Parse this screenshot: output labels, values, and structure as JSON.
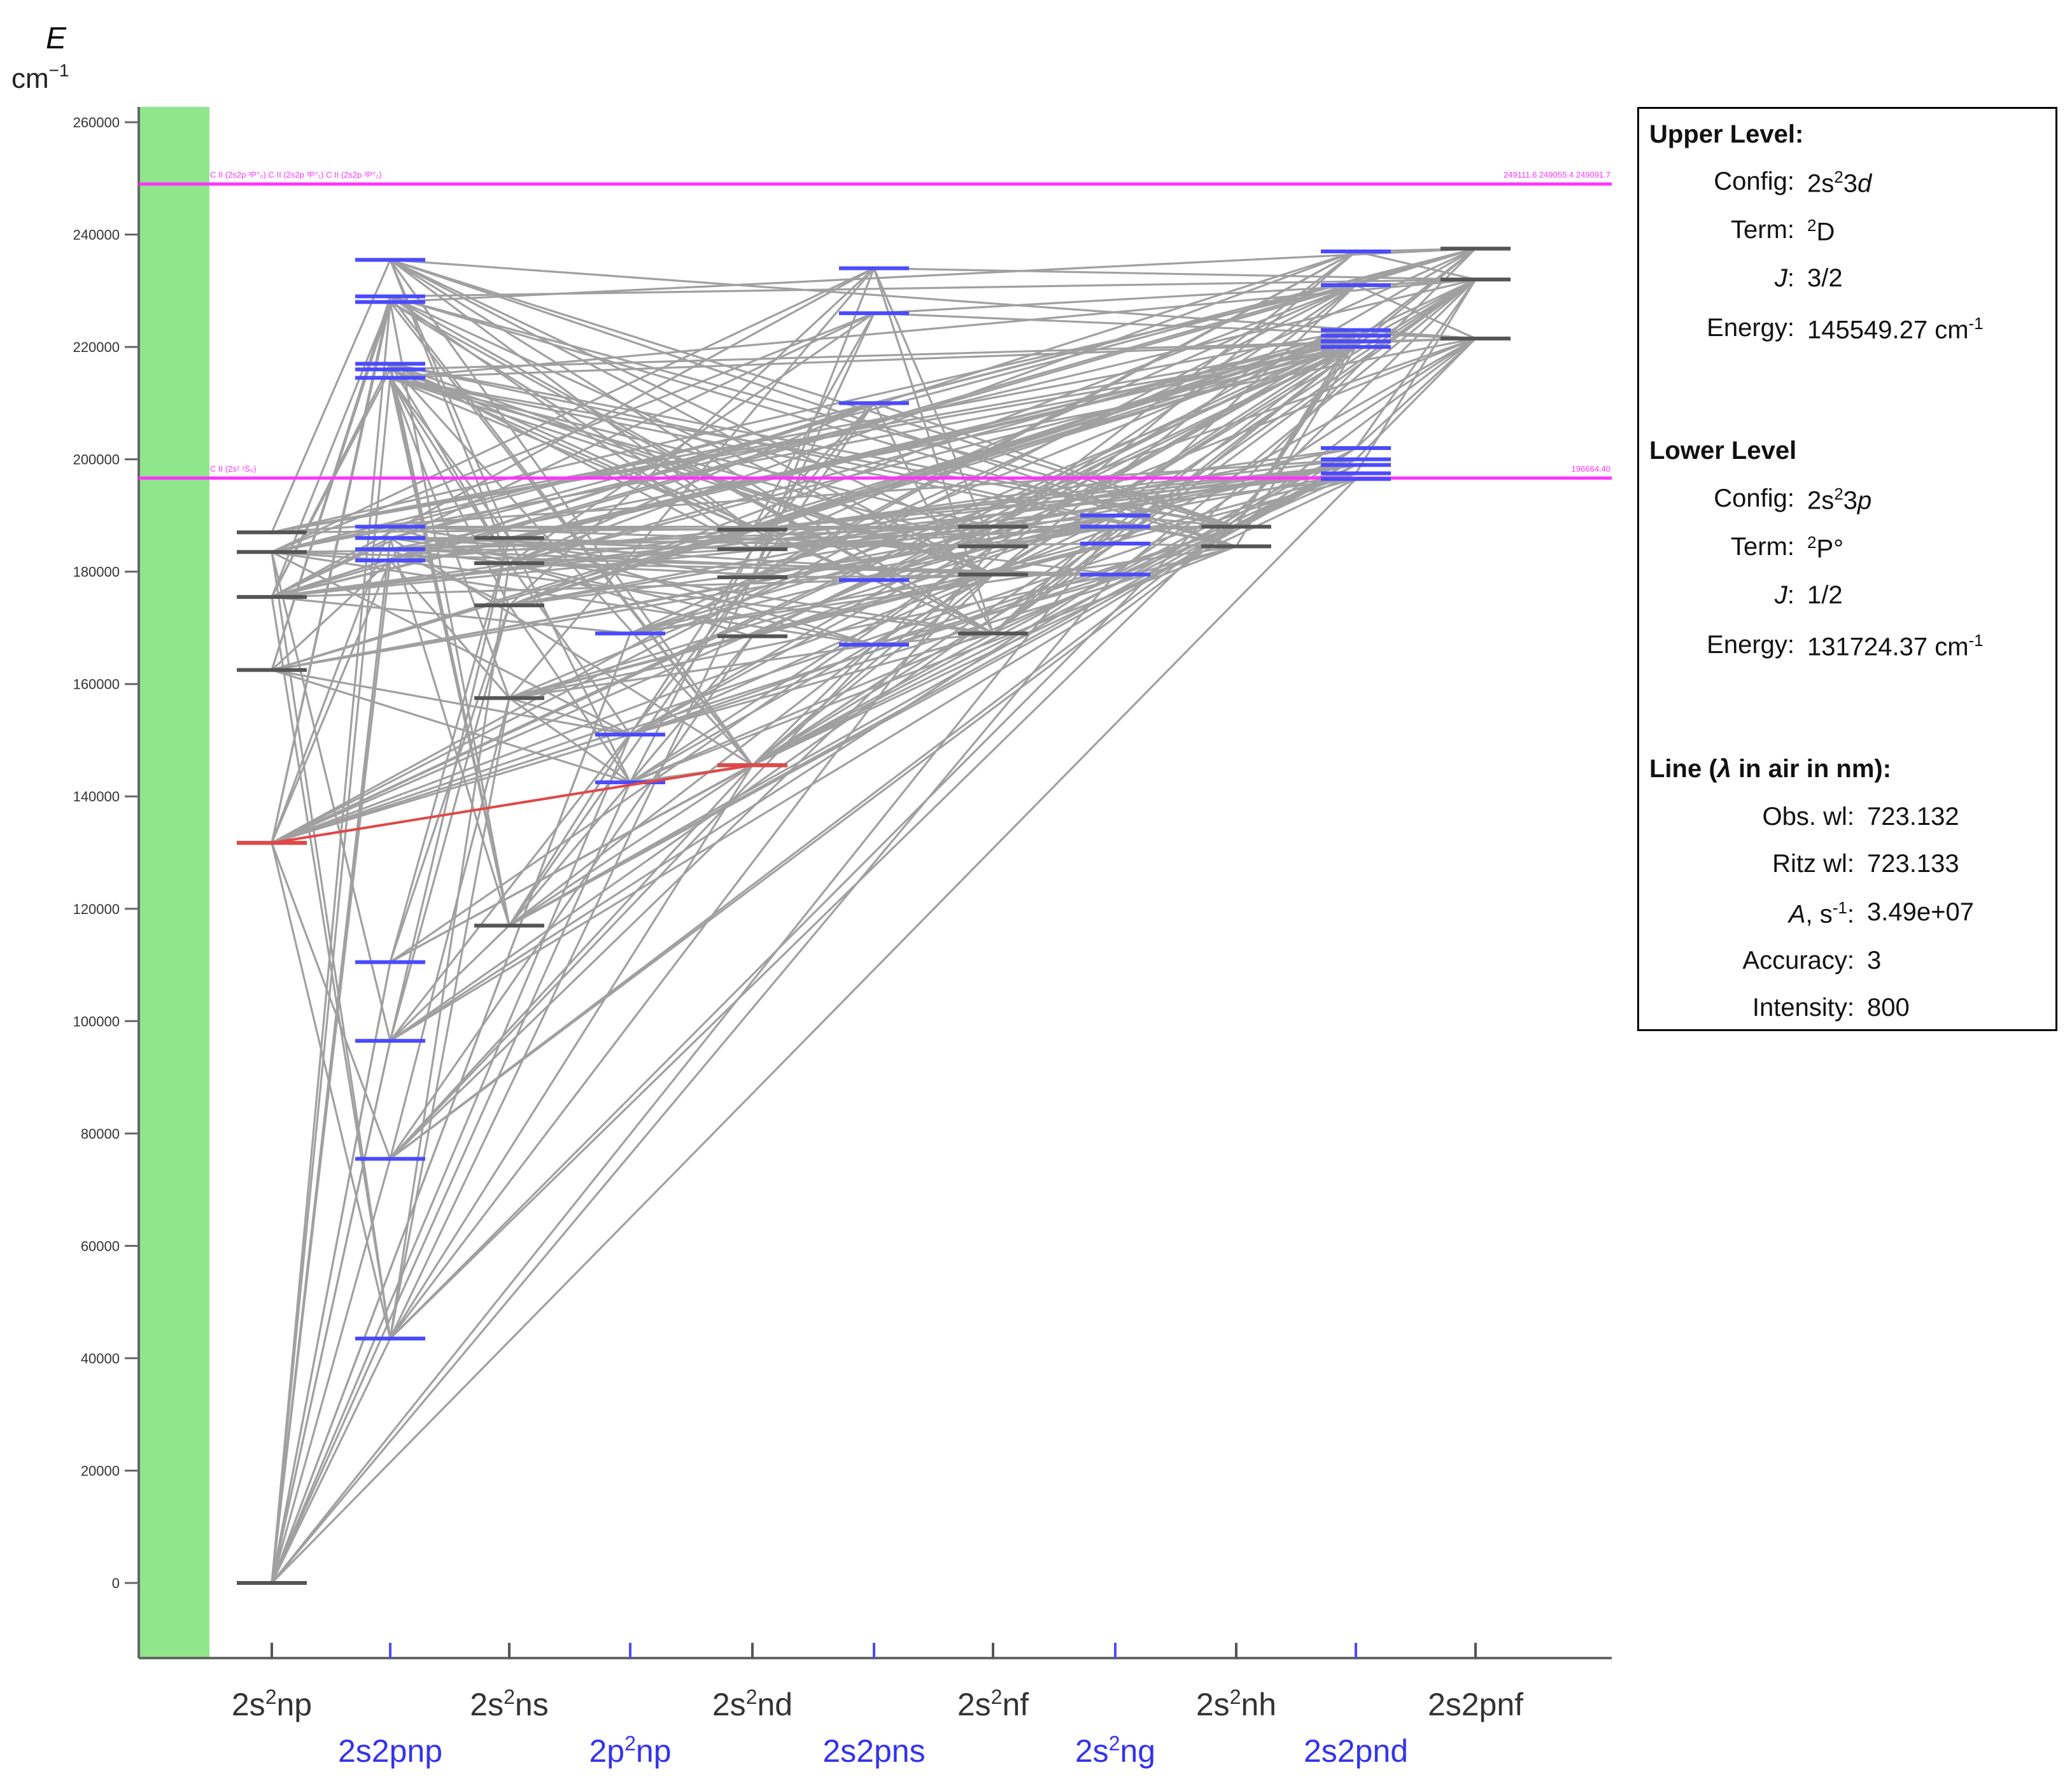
{
  "axis": {
    "e_label": "E",
    "unit_label": "cm",
    "unit_exp": "−1",
    "yticks": [
      0,
      20000,
      40000,
      60000,
      80000,
      100000,
      120000,
      140000,
      160000,
      180000,
      200000,
      220000,
      240000,
      260000
    ],
    "ylim": [
      -13500,
      262500
    ]
  },
  "colors": {
    "green_band": "#90e68a",
    "limit": "#ff33ff",
    "grid_line": "#a0a0a0",
    "highlight": "#e04848",
    "blue": "#4a4aff",
    "black": "#555555"
  },
  "columns": [
    {
      "label": "2s²np",
      "base": "2s",
      "sup": "2",
      "rest": "np",
      "color": "black"
    },
    {
      "label": "2s2pnp",
      "base": "2s2pnp",
      "sup": "",
      "rest": "",
      "color": "blue"
    },
    {
      "label": "2s²ns",
      "base": "2s",
      "sup": "2",
      "rest": "ns",
      "color": "black"
    },
    {
      "label": "2p²np",
      "base": "2p",
      "sup": "2",
      "rest": "np",
      "color": "blue"
    },
    {
      "label": "2s²nd",
      "base": "2s",
      "sup": "2",
      "rest": "nd",
      "color": "black"
    },
    {
      "label": "2s2pns",
      "base": "2s2pns",
      "sup": "",
      "rest": "",
      "color": "blue"
    },
    {
      "label": "2s²nf",
      "base": "2s",
      "sup": "2",
      "rest": "nf",
      "color": "black"
    },
    {
      "label": "2s²ng",
      "base": "2s",
      "sup": "2",
      "rest": "ng",
      "color": "blue"
    },
    {
      "label": "2s²nh",
      "base": "2s",
      "sup": "2",
      "rest": "nh",
      "color": "black"
    },
    {
      "label": "2s2pnd",
      "base": "2s2pnd",
      "sup": "",
      "rest": "",
      "color": "blue"
    },
    {
      "label": "2s2pnf",
      "base": "2s2pnf",
      "sup": "",
      "rest": "",
      "color": "black"
    }
  ],
  "chart_data": {
    "type": "energy-level-diagram",
    "title": "",
    "xlabel": "",
    "ylabel": "E cm⁻¹",
    "levels": [
      [
        0,
        131724,
        162500,
        175500,
        183500,
        187000
      ],
      [
        43500,
        75500,
        96500,
        110500,
        182000,
        184000,
        186000,
        188000,
        214500,
        216000,
        217000,
        228000,
        229000,
        235500
      ],
      [
        117000,
        157500,
        174000,
        181500,
        186000
      ],
      [
        142500,
        151000,
        169000
      ],
      [
        145549,
        168500,
        179000,
        184000,
        187500
      ],
      [
        167000,
        178500,
        210000,
        226000,
        234000
      ],
      [
        169000,
        179500,
        184500,
        188000
      ],
      [
        179500,
        185000,
        188000,
        190000
      ],
      [
        184500,
        188000
      ],
      [
        196500,
        197500,
        199000,
        200000,
        202000,
        220000,
        221000,
        222000,
        223000,
        231000,
        237000
      ],
      [
        221500,
        232000,
        237500
      ]
    ],
    "limits": [
      {
        "energy": 249000,
        "left_text": "C II (2s2p ³P°₀)   C II (2s2p ³P°₁)   C II (2s2p ³P°₂)",
        "right_text": "249111.6   249055.4   249091.7"
      },
      {
        "energy": 196660,
        "left_text": "C II (2s² ¹S₀)",
        "right_text": "196664.40"
      }
    ],
    "highlight_line": {
      "from_col": 0,
      "from_energy": 131724.37,
      "to_col": 4,
      "to_energy": 145549.27
    }
  },
  "info_panel": {
    "upper": {
      "title": "Upper Level:",
      "config_label": "Config:",
      "config": {
        "p1": "2s",
        "s1": "2",
        "p2": "3",
        "it": "d"
      },
      "term_label": "Term:",
      "term": {
        "sup": "2",
        "main": "D",
        "post": ""
      },
      "j_label": "J",
      "j": "3/2",
      "energy_label": "Energy:",
      "energy": "145549.27 cm",
      "energy_exp": "-1"
    },
    "lower": {
      "title": "Lower Level",
      "config_label": "Config:",
      "config": {
        "p1": "2s",
        "s1": "2",
        "p2": "3",
        "it": "p"
      },
      "term_label": "Term:",
      "term": {
        "sup": "2",
        "main": "P",
        "post": "°"
      },
      "j_label": "J",
      "j": "1/2",
      "energy_label": "Energy:",
      "energy": "131724.37 cm",
      "energy_exp": "-1"
    },
    "line": {
      "title_pre": "Line (",
      "title_lambda": "λ",
      "title_post": " in air in nm):",
      "obs_label": "Obs. wl:",
      "obs": "723.132",
      "ritz_label": "Ritz wl:",
      "ritz": "723.133",
      "a_label_it": "A",
      "a_label_rest": ", s",
      "a_label_exp": "-1",
      "a_colon": ":",
      "a": "3.49e+07",
      "acc_label": "Accuracy:",
      "acc": "3",
      "int_label": "Intensity:",
      "int": "800"
    }
  }
}
